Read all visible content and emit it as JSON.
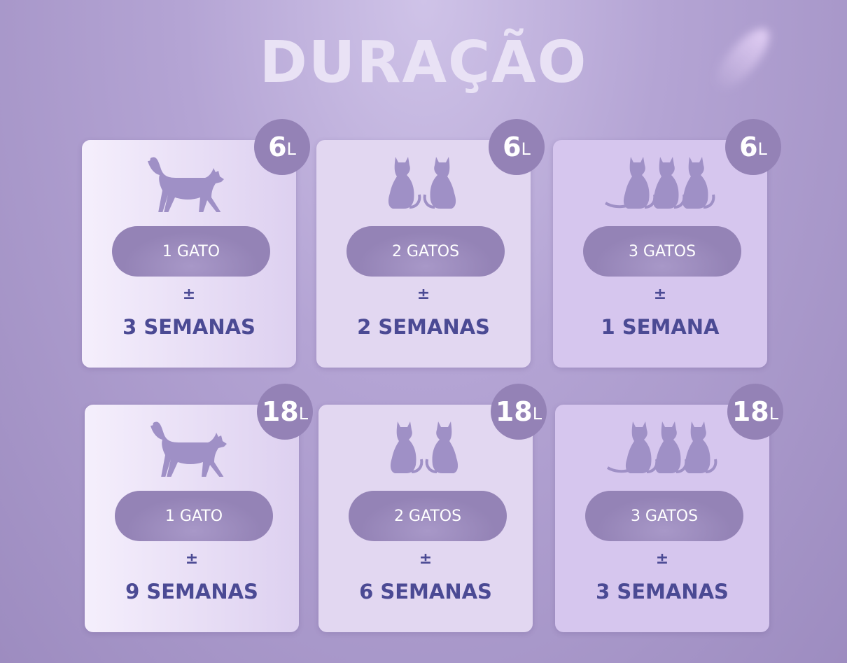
{
  "title": "DURAÇÃO",
  "colors": {
    "card_icon": "#9f90c6",
    "badge": "#9482b6",
    "pill": "#9483b6",
    "text": "#4b4a94"
  },
  "plus_minus": "±",
  "cards": [
    {
      "volume": "6",
      "unit": "L",
      "icon": "one-cat-walking-icon",
      "cats": "1 GATO",
      "duration": "3 SEMANAS"
    },
    {
      "volume": "6",
      "unit": "L",
      "icon": "two-cats-sitting-icon",
      "cats": "2 GATOS",
      "duration": "2 SEMANAS"
    },
    {
      "volume": "6",
      "unit": "L",
      "icon": "three-cats-sitting-icon",
      "cats": "3 GATOS",
      "duration": "1 SEMANA"
    },
    {
      "volume": "18",
      "unit": "L",
      "icon": "one-cat-walking-icon",
      "cats": "1 GATO",
      "duration": "9 SEMANAS"
    },
    {
      "volume": "18",
      "unit": "L",
      "icon": "two-cats-sitting-icon",
      "cats": "2 GATOS",
      "duration": "6 SEMANAS"
    },
    {
      "volume": "18",
      "unit": "L",
      "icon": "three-cats-sitting-icon",
      "cats": "3 GATOS",
      "duration": "3 SEMANAS"
    }
  ]
}
